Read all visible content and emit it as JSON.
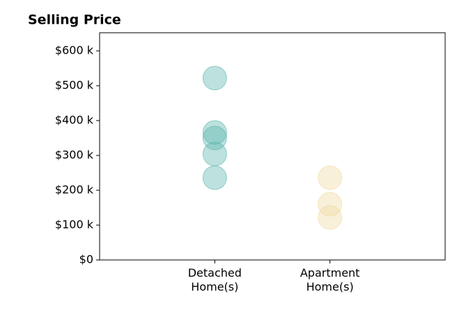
{
  "chart_data": {
    "type": "strip",
    "title": "Selling Price",
    "categories": [
      "Detached Home(s)",
      "Apartment Home(s)"
    ],
    "values": [
      [
        522000,
        366000,
        350000,
        304000,
        236000
      ],
      [
        236000,
        160000,
        122000
      ]
    ],
    "colors": [
      "#5ab4ac",
      "#f0d9a0"
    ],
    "ylim": [
      0,
      652000
    ],
    "yticks": [
      {
        "value": 0,
        "label": "$0"
      },
      {
        "value": 100000,
        "label": "$100 k"
      },
      {
        "value": 200000,
        "label": "$200 k"
      },
      {
        "value": 300000,
        "label": "$300 k"
      },
      {
        "value": 400000,
        "label": "$400 k"
      },
      {
        "value": 500000,
        "label": "$500 k"
      },
      {
        "value": 600000,
        "label": "$600 k"
      }
    ]
  }
}
